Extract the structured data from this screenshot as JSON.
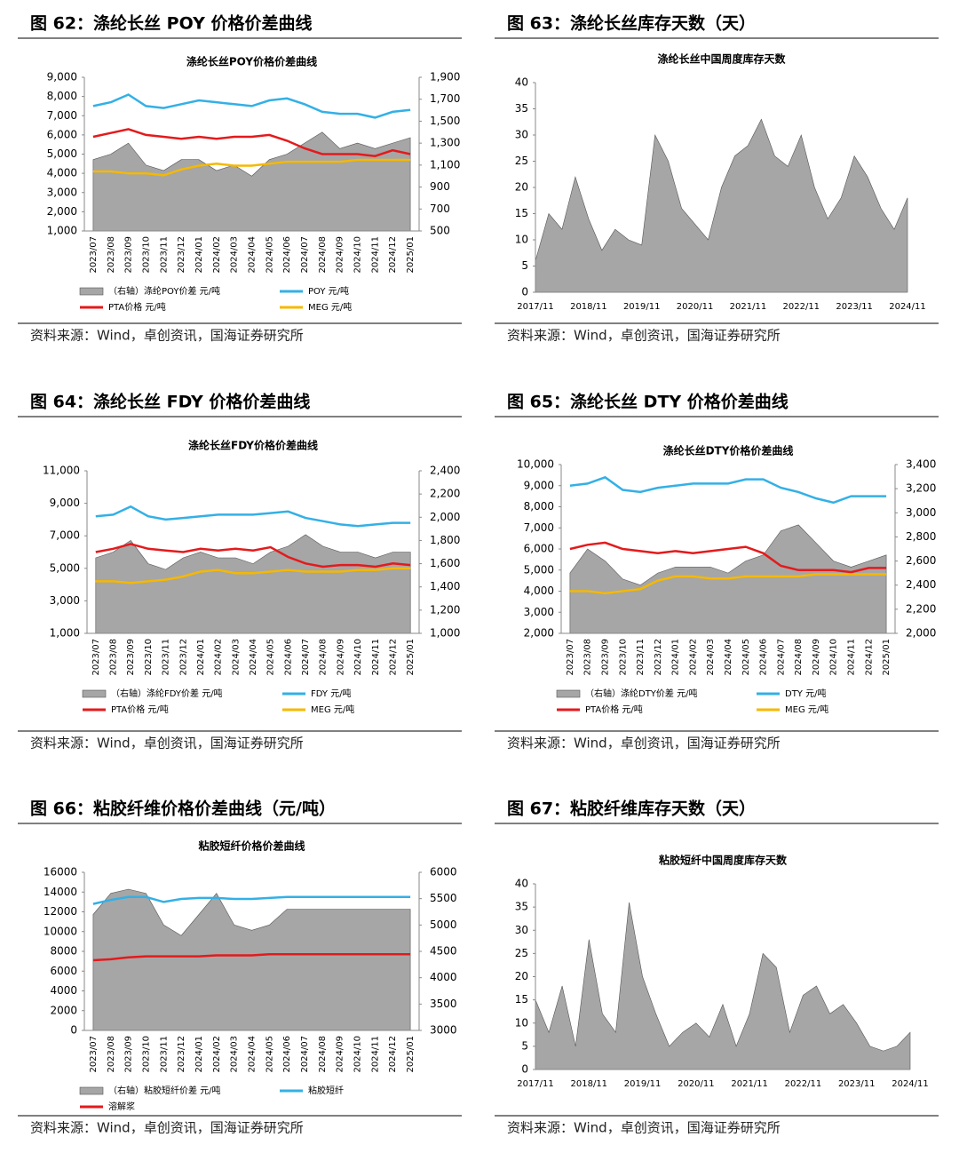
{
  "figures": [
    {
      "heading": "图 62：涤纶长丝 POY 价格价差曲线",
      "source": "资料来源：Wind，卓创资讯，国海证券研究所"
    },
    {
      "heading": "图 63：涤纶长丝库存天数（天）",
      "source": "资料来源：Wind，卓创资讯，国海证券研究所"
    },
    {
      "heading": "图 64：涤纶长丝 FDY 价格价差曲线",
      "source": "资料来源：Wind，卓创资讯，国海证券研究所"
    },
    {
      "heading": "图 65：涤纶长丝 DTY 价格价差曲线",
      "source": "资料来源：Wind，卓创资讯，国海证券研究所"
    },
    {
      "heading": "图 66：粘胶纤维价格价差曲线（元/吨）",
      "source": "资料来源：Wind，卓创资讯，国海证券研究所"
    },
    {
      "heading": "图 67：粘胶纤维库存天数（天）",
      "source": "资料来源：Wind，卓创资讯，国海证券研究所"
    }
  ],
  "chart_data": [
    {
      "type": "line",
      "title": "涤纶长丝POY价格价差曲线",
      "categories": [
        "2023/07",
        "2023/08",
        "2023/09",
        "2023/10",
        "2023/11",
        "2023/12",
        "2024/01",
        "2024/02",
        "2024/03",
        "2024/04",
        "2024/05",
        "2024/06",
        "2024/07",
        "2024/08",
        "2024/09",
        "2024/10",
        "2024/11",
        "2024/12",
        "2025/01"
      ],
      "ylim": [
        1000,
        9000
      ],
      "yticks": [
        {
          "value": 1000,
          "label": "1,000"
        },
        {
          "value": 2000,
          "label": "2,000"
        },
        {
          "value": 3000,
          "label": "3,000"
        },
        {
          "value": 4000,
          "label": "4,000"
        },
        {
          "value": 5000,
          "label": "5,000"
        },
        {
          "value": 6000,
          "label": "6,000"
        },
        {
          "value": 7000,
          "label": "7,000"
        },
        {
          "value": 8000,
          "label": "8,000"
        },
        {
          "value": 9000,
          "label": "9,000"
        }
      ],
      "y2lim": [
        500,
        1900
      ],
      "y2ticks": [
        500,
        700,
        900,
        {
          "value": 1100,
          "label": "1,100"
        },
        {
          "value": 1300,
          "label": "1,300"
        },
        {
          "value": 1500,
          "label": "1,500"
        },
        {
          "value": 1700,
          "label": "1,700"
        },
        {
          "value": 1900,
          "label": "1,900"
        }
      ],
      "series": [
        {
          "name": "（右轴）涤纶POY价差  元/吨",
          "color": "#a6a6a6",
          "kind": "area",
          "axis": "y2",
          "values": [
            1150,
            1200,
            1300,
            1100,
            1050,
            1150,
            1150,
            1050,
            1100,
            1000,
            1150,
            1200,
            1300,
            1400,
            1250,
            1300,
            1250,
            1300,
            1350
          ]
        },
        {
          "name": "POY  元/吨",
          "color": "#33b0e6",
          "values": [
            7500,
            7700,
            8100,
            7500,
            7400,
            7600,
            7800,
            7700,
            7600,
            7500,
            7800,
            7900,
            7600,
            7200,
            7100,
            7100,
            6900,
            7200,
            7300
          ]
        },
        {
          "name": "PTA价格  元/吨",
          "color": "#e41a1c",
          "values": [
            5900,
            6100,
            6300,
            6000,
            5900,
            5800,
            5900,
            5800,
            5900,
            5900,
            6000,
            5700,
            5300,
            5000,
            5000,
            5000,
            4900,
            5200,
            5000
          ]
        },
        {
          "name": "MEG  元/吨",
          "color": "#f5b800",
          "values": [
            4100,
            4100,
            4000,
            4000,
            3900,
            4200,
            4400,
            4500,
            4400,
            4400,
            4500,
            4600,
            4600,
            4600,
            4600,
            4700,
            4700,
            4700,
            4700
          ]
        }
      ]
    },
    {
      "type": "area",
      "title": "涤纶长丝中国周度库存天数",
      "categories": [
        "2017/11",
        null,
        null,
        null,
        "2018/11",
        null,
        null,
        null,
        "2019/11",
        null,
        null,
        null,
        "2020/11",
        null,
        null,
        null,
        "2021/11",
        null,
        null,
        null,
        "2022/11",
        null,
        null,
        null,
        "2023/11",
        null,
        null,
        null,
        "2024/11"
      ],
      "values": [
        6,
        15,
        12,
        22,
        14,
        8,
        12,
        10,
        9,
        30,
        25,
        16,
        13,
        10,
        20,
        26,
        28,
        33,
        26,
        24,
        30,
        20,
        14,
        18,
        26,
        22,
        16,
        12,
        18
      ],
      "color": "#a6a6a6",
      "ylim": [
        0,
        40
      ],
      "yticks": [
        0,
        5,
        10,
        15,
        20,
        25,
        30,
        35,
        40
      ]
    },
    {
      "type": "line",
      "title": "涤纶长丝FDY价格价差曲线",
      "categories": [
        "2023/07",
        "2023/08",
        "2023/09",
        "2023/10",
        "2023/11",
        "2023/12",
        "2024/01",
        "2024/02",
        "2024/03",
        "2024/04",
        "2024/05",
        "2024/06",
        "2024/07",
        "2024/08",
        "2024/09",
        "2024/10",
        "2024/11",
        "2024/12",
        "2025/01"
      ],
      "ylim": [
        1000,
        11000
      ],
      "yticks": [
        {
          "value": 1000,
          "label": "1,000"
        },
        {
          "value": 3000,
          "label": "3,000"
        },
        {
          "value": 5000,
          "label": "5,000"
        },
        {
          "value": 7000,
          "label": "7,000"
        },
        {
          "value": 9000,
          "label": "9,000"
        },
        {
          "value": 11000,
          "label": "11,000"
        }
      ],
      "y2lim": [
        1000,
        2400
      ],
      "y2ticks": [
        {
          "value": 1000,
          "label": "1,000"
        },
        {
          "value": 1200,
          "label": "1,200"
        },
        {
          "value": 1400,
          "label": "1,400"
        },
        {
          "value": 1600,
          "label": "1,600"
        },
        {
          "value": 1800,
          "label": "1,800"
        },
        {
          "value": 2000,
          "label": "2,000"
        },
        {
          "value": 2200,
          "label": "2,200"
        },
        {
          "value": 2400,
          "label": "2,400"
        }
      ],
      "series": [
        {
          "name": "（右轴）涤纶FDY价差  元/吨",
          "color": "#a6a6a6",
          "kind": "area",
          "axis": "y2",
          "values": [
            1650,
            1700,
            1800,
            1600,
            1550,
            1650,
            1700,
            1650,
            1650,
            1600,
            1700,
            1750,
            1850,
            1750,
            1700,
            1700,
            1650,
            1700,
            1700
          ]
        },
        {
          "name": "FDY  元/吨",
          "color": "#33b0e6",
          "values": [
            8200,
            8300,
            8800,
            8200,
            8000,
            8100,
            8200,
            8300,
            8300,
            8300,
            8400,
            8500,
            8100,
            7900,
            7700,
            7600,
            7700,
            7800,
            7800
          ]
        },
        {
          "name": "PTA价格  元/吨",
          "color": "#e41a1c",
          "values": [
            6000,
            6200,
            6500,
            6200,
            6100,
            6000,
            6200,
            6100,
            6200,
            6100,
            6300,
            5700,
            5300,
            5100,
            5200,
            5200,
            5100,
            5300,
            5200
          ]
        },
        {
          "name": "MEG  元/吨",
          "color": "#f5b800",
          "values": [
            4200,
            4200,
            4100,
            4200,
            4300,
            4500,
            4800,
            4900,
            4700,
            4700,
            4800,
            4900,
            4800,
            4800,
            4800,
            4900,
            4900,
            5000,
            5000
          ]
        }
      ]
    },
    {
      "type": "line",
      "title": "涤纶长丝DTY价格价差曲线",
      "categories": [
        "2023/07",
        "2023/08",
        "2023/09",
        "2023/10",
        "2023/11",
        "2023/12",
        "2024/01",
        "2024/02",
        "2024/03",
        "2024/04",
        "2024/05",
        "2024/06",
        "2024/07",
        "2024/08",
        "2024/09",
        "2024/10",
        "2024/11",
        "2024/12",
        "2025/01"
      ],
      "ylim": [
        2000,
        10000
      ],
      "yticks": [
        {
          "value": 2000,
          "label": "2,000"
        },
        {
          "value": 3000,
          "label": "3,000"
        },
        {
          "value": 4000,
          "label": "4,000"
        },
        {
          "value": 5000,
          "label": "5,000"
        },
        {
          "value": 6000,
          "label": "6,000"
        },
        {
          "value": 7000,
          "label": "7,000"
        },
        {
          "value": 8000,
          "label": "8,000"
        },
        {
          "value": 9000,
          "label": "9,000"
        },
        {
          "value": 10000,
          "label": "10,000"
        }
      ],
      "y2lim": [
        2000,
        3400
      ],
      "y2ticks": [
        {
          "value": 2000,
          "label": "2,000"
        },
        {
          "value": 2200,
          "label": "2,200"
        },
        {
          "value": 2400,
          "label": "2,400"
        },
        {
          "value": 2600,
          "label": "2,600"
        },
        {
          "value": 2800,
          "label": "2,800"
        },
        {
          "value": 3000,
          "label": "3,000"
        },
        {
          "value": 3200,
          "label": "3,200"
        },
        {
          "value": 3400,
          "label": "3,400"
        }
      ],
      "series": [
        {
          "name": "（右轴）涤纶DTY价差  元/吨",
          "color": "#a6a6a6",
          "kind": "area",
          "axis": "y2",
          "values": [
            2500,
            2700,
            2600,
            2450,
            2400,
            2500,
            2550,
            2550,
            2550,
            2500,
            2600,
            2650,
            2850,
            2900,
            2750,
            2600,
            2550,
            2600,
            2650
          ]
        },
        {
          "name": "DTY  元/吨",
          "color": "#33b0e6",
          "values": [
            9000,
            9100,
            9400,
            8800,
            8700,
            8900,
            9000,
            9100,
            9100,
            9100,
            9300,
            9300,
            8900,
            8700,
            8400,
            8200,
            8500,
            8500,
            8500
          ]
        },
        {
          "name": "PTA价格  元/吨",
          "color": "#e41a1c",
          "values": [
            6000,
            6200,
            6300,
            6000,
            5900,
            5800,
            5900,
            5800,
            5900,
            6000,
            6100,
            5800,
            5200,
            5000,
            5000,
            5000,
            4900,
            5100,
            5100
          ]
        },
        {
          "name": "MEG  元/吨",
          "color": "#f5b800",
          "values": [
            4000,
            4000,
            3900,
            4000,
            4100,
            4500,
            4700,
            4700,
            4600,
            4600,
            4700,
            4700,
            4700,
            4700,
            4800,
            4800,
            4800,
            4800,
            4800
          ]
        }
      ]
    },
    {
      "type": "line",
      "title": "粘胶短纤价格价差曲线",
      "categories": [
        "2023/07",
        "2023/08",
        "2023/09",
        "2023/10",
        "2023/11",
        "2023/12",
        "2024/01",
        "2024/02",
        "2024/03",
        "2024/04",
        "2024/05",
        "2024/06",
        "2024/07",
        "2024/08",
        "2024/09",
        "2024/10",
        "2024/11",
        "2024/12",
        "2025/01"
      ],
      "ylim": [
        0,
        16000
      ],
      "yticks": [
        0,
        2000,
        4000,
        6000,
        8000,
        10000,
        12000,
        14000,
        16000
      ],
      "y2lim": [
        3000,
        6000
      ],
      "y2ticks": [
        3000,
        3500,
        4000,
        4500,
        5000,
        5500,
        6000
      ],
      "series": [
        {
          "name": "（右轴）粘胶短纤价差  元/吨",
          "color": "#a6a6a6",
          "kind": "area",
          "axis": "y2",
          "values": [
            5200,
            5600,
            5680,
            5600,
            5000,
            4800,
            5200,
            5600,
            5000,
            4900,
            5000,
            5300,
            5300,
            5300,
            5300,
            5300,
            5300,
            5300,
            5300
          ]
        },
        {
          "name": "粘胶短纤",
          "color": "#33b0e6",
          "values": [
            12800,
            13200,
            13500,
            13500,
            13000,
            13300,
            13400,
            13400,
            13300,
            13300,
            13400,
            13500,
            13500,
            13500,
            13500,
            13500,
            13500,
            13500,
            13500
          ]
        },
        {
          "name": "溶解浆",
          "color": "#e41a1c",
          "values": [
            7100,
            7200,
            7400,
            7500,
            7500,
            7500,
            7500,
            7600,
            7600,
            7600,
            7700,
            7700,
            7700,
            7700,
            7700,
            7700,
            7700,
            7700,
            7700
          ]
        }
      ]
    },
    {
      "type": "area",
      "title": "粘胶短纤中国周度库存天数",
      "categories": [
        "2017/11",
        null,
        null,
        null,
        "2018/11",
        null,
        null,
        null,
        "2019/11",
        null,
        null,
        null,
        "2020/11",
        null,
        null,
        null,
        "2021/11",
        null,
        null,
        null,
        "2022/11",
        null,
        null,
        null,
        "2023/11",
        null,
        null,
        null,
        "2024/11"
      ],
      "values": [
        15,
        8,
        18,
        5,
        28,
        12,
        8,
        36,
        20,
        12,
        5,
        8,
        10,
        7,
        14,
        5,
        12,
        25,
        22,
        8,
        16,
        18,
        12,
        14,
        10,
        5,
        4,
        5,
        8
      ],
      "color": "#a6a6a6",
      "ylim": [
        0,
        40
      ],
      "yticks": [
        0,
        5,
        10,
        15,
        20,
        25,
        30,
        35,
        40
      ]
    }
  ]
}
